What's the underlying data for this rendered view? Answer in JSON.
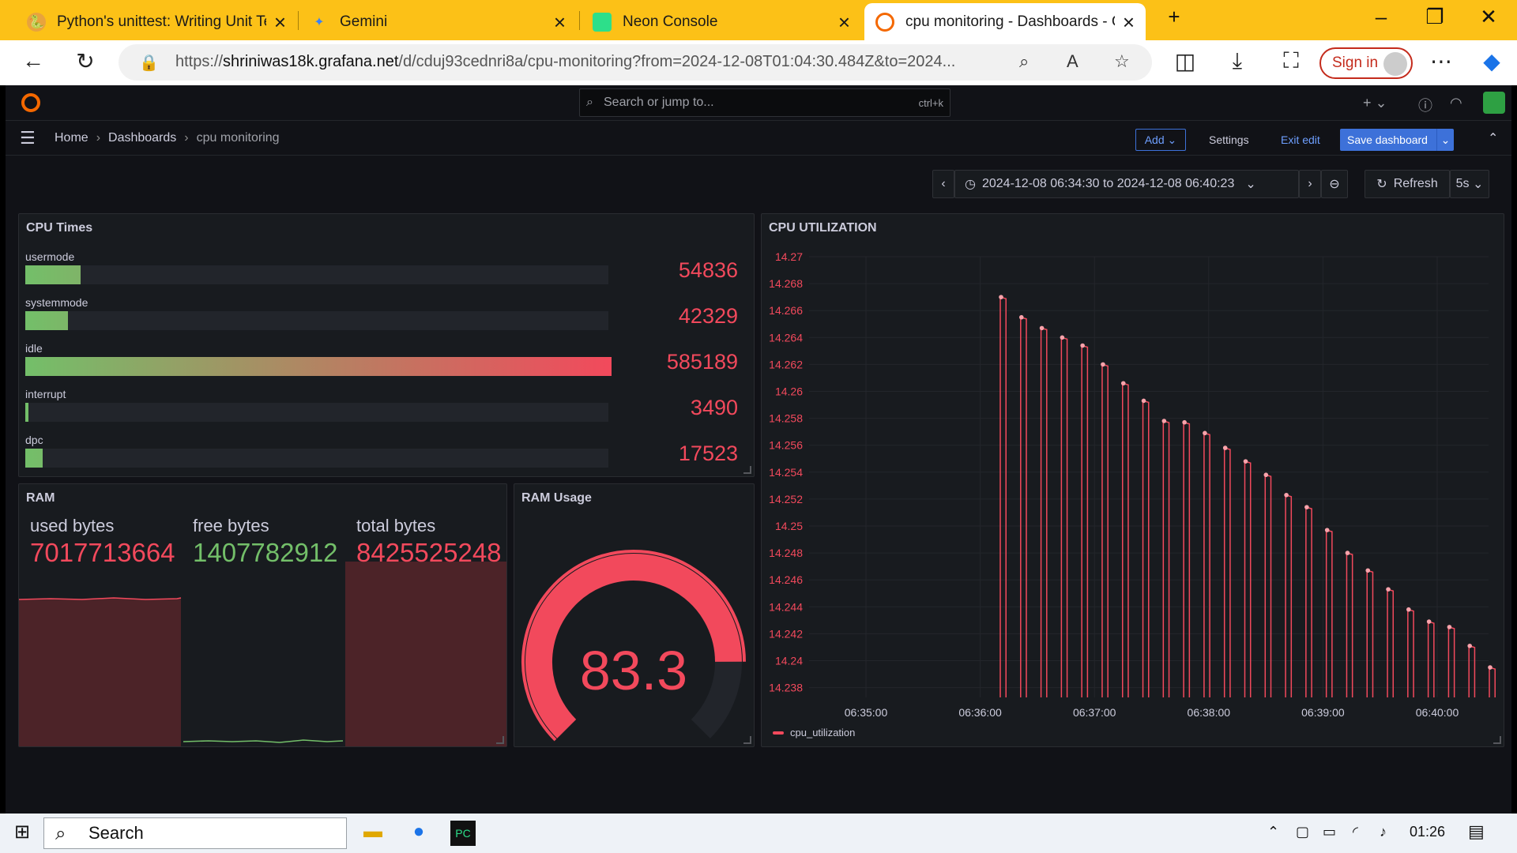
{
  "browser": {
    "tabs": [
      {
        "title": "Python's unittest: Writing Unit Te",
        "icon": "python-icon"
      },
      {
        "title": "Gemini",
        "icon": "gemini-icon"
      },
      {
        "title": "Neon Console",
        "icon": "neon-icon"
      },
      {
        "title": "cpu monitoring - Dashboards - G",
        "icon": "grafana-icon"
      }
    ],
    "url_prefix": "https://",
    "url_host": "shriniwas18k.grafana.net",
    "url_path": "/d/cduj93cednri8a/cpu-monitoring?from=2024-12-08T01:04:30.484Z&to=2024...",
    "sign_in": "Sign in"
  },
  "grafana": {
    "search_placeholder": "Search or jump to...",
    "search_shortcut": "ctrl+k",
    "breadcrumb": {
      "home": "Home",
      "dashboards": "Dashboards",
      "current": "cpu monitoring"
    },
    "toolbar": {
      "add": "Add",
      "settings": "Settings",
      "exit_edit": "Exit edit",
      "save": "Save dashboard"
    },
    "time_range": "2024-12-08 06:34:30 to 2024-12-08 06:40:23",
    "refresh": "Refresh",
    "refresh_interval": "5s"
  },
  "cpu_times": {
    "title": "CPU Times",
    "max": 585189,
    "rows": [
      {
        "label": "usermode",
        "value": 54836,
        "display": "54836"
      },
      {
        "label": "systemmode",
        "value": 42329,
        "display": "42329"
      },
      {
        "label": "idle",
        "value": 585189,
        "display": "585189"
      },
      {
        "label": "interrupt",
        "value": 3490,
        "display": "3490"
      },
      {
        "label": "dpc",
        "value": 17523,
        "display": "17523"
      }
    ]
  },
  "ram": {
    "title": "RAM",
    "stats": [
      {
        "label": "used bytes",
        "value": "7017713664",
        "color": "#f2495c"
      },
      {
        "label": "free bytes",
        "value": "1407782912",
        "color": "#73bf69"
      },
      {
        "label": "total bytes",
        "value": "8425525248",
        "color": "#f2495c"
      }
    ]
  },
  "ram_usage": {
    "title": "RAM Usage",
    "value": 83.3,
    "display": "83.3",
    "color": "#f2495c"
  },
  "chart_data": {
    "type": "bar",
    "title": "CPU UTILIZATION",
    "ylim": [
      14.237,
      14.27
    ],
    "yticks": [
      "14.27",
      "14.268",
      "14.266",
      "14.264",
      "14.262",
      "14.26",
      "14.258",
      "14.256",
      "14.254",
      "14.252",
      "14.25",
      "14.248",
      "14.246",
      "14.244",
      "14.242",
      "14.24",
      "14.238"
    ],
    "xticks": [
      "06:35:00",
      "06:36:00",
      "06:37:00",
      "06:38:00",
      "06:39:00",
      "06:40:00"
    ],
    "legend_position": "bottom-left",
    "series": [
      {
        "name": "cpu_utilization",
        "color": "#f2495c",
        "values": [
          14.267,
          14.2655,
          14.2647,
          14.264,
          14.2634,
          14.262,
          14.2606,
          14.2593,
          14.2578,
          14.2577,
          14.2569,
          14.2558,
          14.2548,
          14.2538,
          14.2523,
          14.2514,
          14.2497,
          14.248,
          14.2467,
          14.2453,
          14.2438,
          14.2429,
          14.2425,
          14.2411,
          14.2395
        ]
      }
    ]
  },
  "taskbar": {
    "search": "Search",
    "time": "01:26"
  }
}
